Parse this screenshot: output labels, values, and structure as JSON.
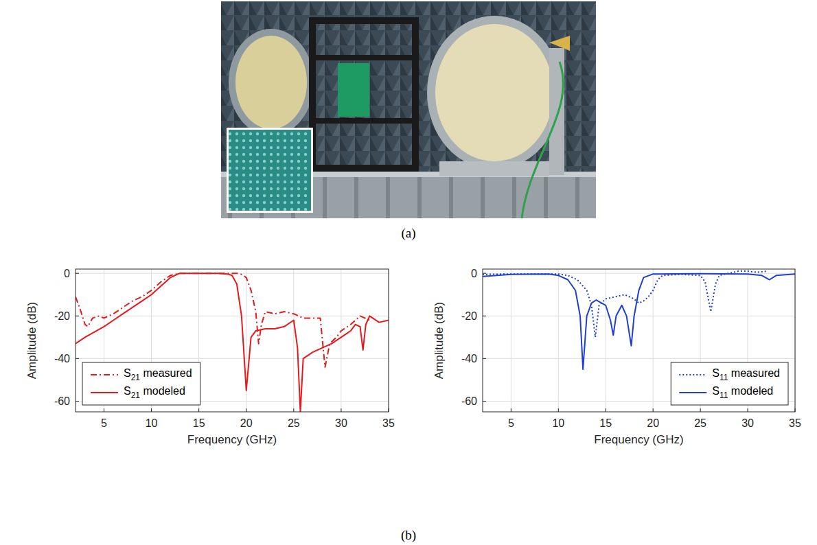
{
  "captions": {
    "a": "(a)",
    "b": "(b)"
  },
  "chart_data": [
    {
      "type": "line",
      "xlabel": "Frequency (GHz)",
      "ylabel": "Amplitude (dB)",
      "xlim": [
        2,
        35
      ],
      "ylim": [
        -65,
        2
      ],
      "xticks": [
        5,
        10,
        15,
        20,
        25,
        30,
        35
      ],
      "yticks": [
        -60,
        -40,
        -20,
        0
      ],
      "grid": true,
      "legend": "lower-left",
      "series": [
        {
          "name": "S21 measured",
          "color": "#e41a1c",
          "line_style": "dashdot",
          "x": [
            2,
            2.5,
            3,
            3.3,
            3.8,
            4.5,
            5,
            6,
            7,
            8,
            9,
            10,
            11,
            12,
            13,
            14,
            16,
            18,
            19,
            19.5,
            20,
            20.5,
            21,
            21.3,
            21.6,
            22,
            23,
            24,
            25,
            26,
            27,
            27.8,
            28.3,
            28.8,
            29.5,
            30,
            31,
            32,
            33
          ],
          "values": [
            -11,
            -17,
            -24,
            -25,
            -21,
            -20,
            -21,
            -19,
            -16,
            -13,
            -11,
            -8,
            -4,
            -1,
            0,
            0,
            0,
            0,
            0,
            -0.5,
            -2,
            -8,
            -18,
            -33,
            -24,
            -18,
            -19,
            -18,
            -19,
            -21,
            -21,
            -21,
            -44,
            -33,
            -30,
            -27,
            -24,
            -20,
            -22
          ]
        },
        {
          "name": "S21 modeled",
          "color": "#e41a1c",
          "line_style": "solid",
          "x": [
            2,
            3,
            4,
            5,
            6,
            7,
            8,
            9,
            10,
            11,
            12,
            12.8,
            13,
            14,
            15,
            16,
            17,
            18,
            18.5,
            19,
            19.5,
            20,
            20.5,
            21,
            22,
            23,
            24,
            25,
            25.4,
            25.7,
            26,
            27,
            28,
            29,
            30,
            31,
            31.5,
            32,
            32.3,
            32.6,
            33,
            34,
            35
          ],
          "values": [
            -33,
            -30,
            -27.5,
            -25,
            -22,
            -19,
            -16,
            -13,
            -10,
            -6,
            -2,
            -0.3,
            0,
            0,
            0,
            0,
            0,
            -0.3,
            -1,
            -5,
            -20,
            -55,
            -30,
            -27,
            -26,
            -26,
            -25,
            -22,
            -35,
            -65,
            -40,
            -37,
            -35,
            -33,
            -30,
            -27,
            -24,
            -25,
            -36,
            -24,
            -20,
            -23,
            -22
          ]
        }
      ]
    },
    {
      "type": "line",
      "xlabel": "Frequency (GHz)",
      "ylabel": "Amplitude (dB)",
      "xlim": [
        2,
        35
      ],
      "ylim": [
        -65,
        2
      ],
      "xticks": [
        5,
        10,
        15,
        20,
        25,
        30,
        35
      ],
      "yticks": [
        -60,
        -40,
        -20,
        0
      ],
      "grid": true,
      "legend": "lower-right",
      "series": [
        {
          "name": "S11 measured",
          "color": "#1f3fd0",
          "line_style": "dotted",
          "x": [
            2,
            5,
            10,
            11,
            12,
            13,
            13.5,
            13.9,
            14.3,
            15,
            16,
            17,
            18,
            18.5,
            19,
            19.5,
            20,
            20.5,
            21,
            23,
            25,
            25.5,
            26.1,
            26.6,
            27,
            28,
            29,
            30,
            31,
            32
          ],
          "values": [
            -0.5,
            -0.3,
            -0.3,
            -1,
            -3,
            -8,
            -15,
            -30,
            -15,
            -12,
            -11,
            -10,
            -12,
            -14,
            -13,
            -11,
            -8,
            -3,
            -1,
            -0.5,
            -1,
            -4,
            -18,
            -5,
            -1,
            0,
            1,
            1,
            0.5,
            1
          ]
        },
        {
          "name": "S11 modeled",
          "color": "#1f3fd0",
          "line_style": "solid",
          "x": [
            2,
            5,
            9,
            10,
            11,
            11.8,
            12.3,
            12.6,
            13,
            13.5,
            14,
            15,
            15.5,
            15.8,
            16.1,
            16.7,
            17.2,
            17.7,
            18,
            18.5,
            19,
            20,
            25,
            30,
            31.5,
            32.3,
            33,
            35
          ],
          "values": [
            -1.5,
            -0.5,
            -0.3,
            -1,
            -3,
            -8,
            -20,
            -45,
            -20,
            -14,
            -12.5,
            -15,
            -22,
            -29,
            -20,
            -15,
            -20,
            -34,
            -20,
            -8,
            -2,
            -0.3,
            -0.2,
            -0.3,
            -1,
            -3,
            -1,
            -0.3
          ]
        }
      ]
    }
  ]
}
